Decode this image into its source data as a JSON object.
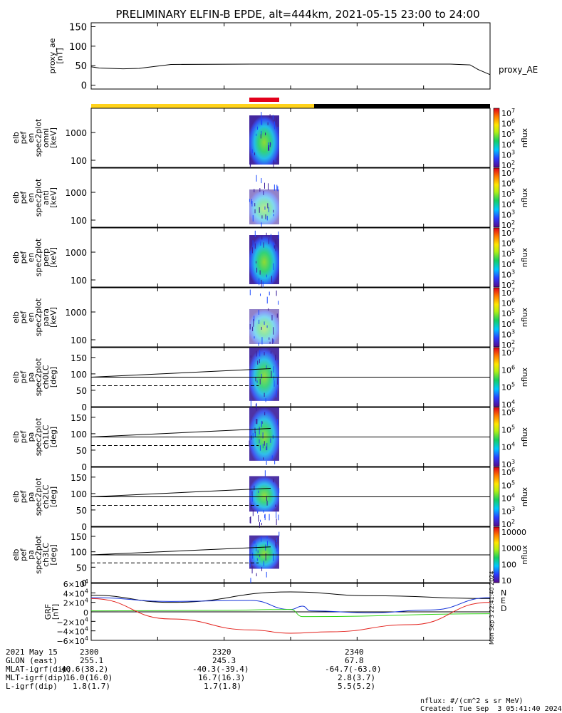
{
  "title": "PRELIMINARY ELFIN-B EPDE, alt=444km, 2021-05-15 23:00 to 24:00",
  "colors": {
    "yellow": "#ffd21a",
    "red": "#e3001b",
    "black": "#000000",
    "grf_x": "#1533d8",
    "grf_y": "#2fd414",
    "grf_z": "#e3201b"
  },
  "chart_data": [
    {
      "type": "line",
      "name_label": "proxy_AE",
      "ylabel": [
        "proxy_ae",
        "[nT]"
      ],
      "yticks": [
        0,
        50,
        100,
        150
      ],
      "ylim": [
        -10,
        160
      ],
      "x": [
        23.0,
        23.25,
        23.5,
        23.75,
        24.0
      ],
      "series": [
        {
          "name": "proxy_AE",
          "x": [
            23.0,
            23.02,
            23.08,
            23.12,
            23.2,
            23.4,
            23.6,
            23.8,
            23.9,
            23.95,
            23.97,
            24.0
          ],
          "values": [
            47,
            44,
            42,
            43,
            53,
            54,
            54,
            54,
            54,
            52,
            40,
            27
          ]
        }
      ]
    },
    {
      "type": "heatmap",
      "ylabel": [
        "elb",
        "pef",
        "en",
        "spec2plot",
        "omni",
        "[keV]"
      ],
      "ytick_labels": [
        "1000",
        "100"
      ],
      "cbar_ticks": [
        "10^7",
        "10^6",
        "10^5",
        "10^4",
        "10^3",
        "10^2"
      ],
      "cbar_label": "nflux"
    },
    {
      "type": "heatmap",
      "ylabel": [
        "elb",
        "pef",
        "en",
        "spec2plot",
        "anti",
        "[keV]"
      ],
      "ytick_labels": [
        "1000",
        "100"
      ],
      "cbar_ticks": [
        "10^7",
        "10^6",
        "10^5",
        "10^4",
        "10^3",
        "10^2"
      ],
      "cbar_label": "nflux"
    },
    {
      "type": "heatmap",
      "ylabel": [
        "elb",
        "pef",
        "en",
        "spec2plot",
        "perp",
        "[keV]"
      ],
      "ytick_labels": [
        "1000",
        "100"
      ],
      "cbar_ticks": [
        "10^7",
        "10^6",
        "10^5",
        "10^4",
        "10^3",
        "10^2"
      ],
      "cbar_label": "nflux"
    },
    {
      "type": "heatmap",
      "ylabel": [
        "elb",
        "pef",
        "en",
        "spec2plot",
        "para",
        "[keV]"
      ],
      "ytick_labels": [
        "1000",
        "100"
      ],
      "cbar_ticks": [
        "10^7",
        "10^6",
        "10^5",
        "10^4",
        "10^3",
        "10^2"
      ],
      "cbar_label": "nflux"
    },
    {
      "type": "heatmap",
      "ylabel": [
        "elb",
        "pef",
        "pa",
        "spec2plot",
        "ch0LC",
        "[deg]"
      ],
      "yticks": [
        "150",
        "100",
        "50",
        "0"
      ],
      "cbar_ticks": [
        "10^7",
        "10^6",
        "10^5",
        "10^4"
      ],
      "cbar_label": "nflux"
    },
    {
      "type": "heatmap",
      "ylabel": [
        "elb",
        "pef",
        "pa",
        "spec2plot",
        "ch1LC",
        "[deg]"
      ],
      "yticks": [
        "150",
        "100",
        "50",
        "0"
      ],
      "cbar_ticks": [
        "10^6",
        "10^5",
        "10^4",
        "10^3"
      ],
      "cbar_label": "nflux"
    },
    {
      "type": "heatmap",
      "ylabel": [
        "elb",
        "pef",
        "pa",
        "spec2plot",
        "ch2LC",
        "[deg]"
      ],
      "yticks": [
        "150",
        "100",
        "50",
        "0"
      ],
      "cbar_ticks": [
        "10^6",
        "10^5",
        "10^4",
        "10^3",
        "10^2"
      ],
      "cbar_label": "nflux"
    },
    {
      "type": "heatmap",
      "ylabel": [
        "elb",
        "pef",
        "pa",
        "spec2plot",
        "ch3LC",
        "[deg]"
      ],
      "yticks": [
        "150",
        "100",
        "50",
        "0"
      ],
      "cbar_ticks": [
        "10000",
        "1000",
        "100",
        "10"
      ],
      "cbar_label": "nflux"
    },
    {
      "type": "line",
      "ylabel": [
        "GRF",
        "[nT]"
      ],
      "yticks": [
        "6×10^4",
        "4×10^4",
        "2×10^4",
        "0",
        "−2×10^4",
        "−4×10^4",
        "−6×10^4"
      ],
      "ylim": [
        -60000,
        60000
      ],
      "legend": [
        "N",
        "E",
        "D"
      ],
      "series": [
        {
          "name": "total",
          "x": [
            23.0,
            23.2,
            23.5,
            23.7,
            24.0
          ],
          "values": [
            35000,
            20000,
            42000,
            34000,
            28000
          ]
        },
        {
          "name": "N",
          "x": [
            23.0,
            23.2,
            23.4,
            23.5,
            23.53,
            23.55,
            23.7,
            23.85,
            24.0
          ],
          "values": [
            30000,
            22000,
            24000,
            5000,
            12000,
            2000,
            -2000,
            4000,
            30000
          ]
        },
        {
          "name": "E",
          "x": [
            23.0,
            23.3,
            23.5,
            23.53,
            23.55,
            24.0
          ],
          "values": [
            2000,
            3000,
            5000,
            -10000,
            -10000,
            -4000
          ]
        },
        {
          "name": "D",
          "x": [
            23.0,
            23.2,
            23.4,
            23.5,
            23.6,
            23.8,
            24.0
          ],
          "values": [
            28000,
            -15000,
            -38000,
            -45000,
            -42000,
            -27000,
            20000
          ]
        }
      ]
    }
  ],
  "side_timestamp": "Mon Sep 3 22:41:40 2024",
  "footer": {
    "date_label": "2021 May 15",
    "row_labels": [
      "GLON (east)",
      "MLAT-igrf(dip)",
      "MLT-igrf(dip)",
      "L-igrf(dip)"
    ],
    "ticks": [
      "2300",
      "2320",
      "2340"
    ],
    "rows": [
      [
        "255.1",
        "245.3",
        "67.8"
      ],
      [
        "40.6(38.2)",
        "-40.3(-39.4)",
        "-64.7(-63.0)"
      ],
      [
        "16.0(16.0)",
        "16.7(16.3)",
        "2.8(3.7)"
      ],
      [
        "1.8(1.7)",
        "1.7(1.8)",
        "5.5(5.2)"
      ]
    ],
    "units": "nflux: #/(cm^2 s sr MeV)",
    "created": "Created: Tue Sep  3 05:41:40 2024"
  }
}
